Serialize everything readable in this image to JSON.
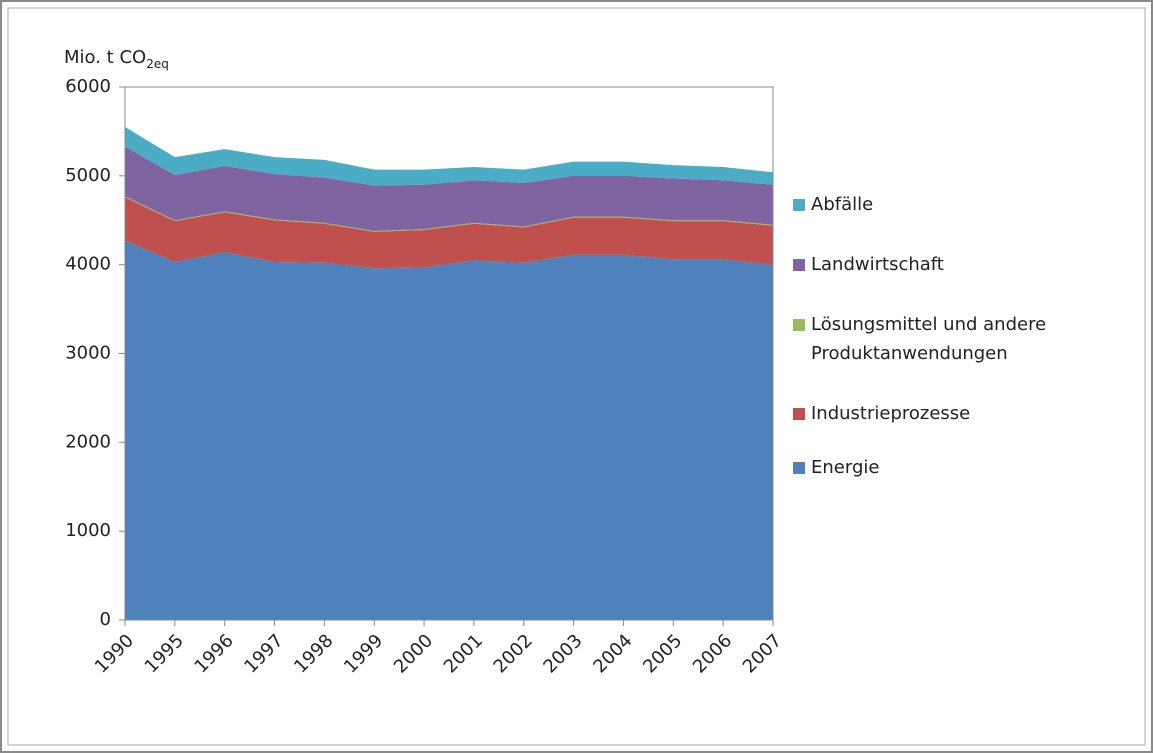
{
  "chart_data": {
    "type": "stacked_area",
    "ylabel": {
      "main": "Mio. t CO",
      "sub": "2eq"
    },
    "categories": [
      "1990",
      "1995",
      "1996",
      "1997",
      "1998",
      "1999",
      "2000",
      "2001",
      "2002",
      "2003",
      "2004",
      "2005",
      "2006",
      "2007"
    ],
    "series": [
      {
        "name": "Energie",
        "color": "#4f81bd",
        "values": [
          4270,
          4030,
          4140,
          4030,
          4020,
          3960,
          3970,
          4050,
          4020,
          4110,
          4110,
          4060,
          4060,
          4000
        ]
      },
      {
        "name": "Industrieprozesse",
        "color": "#c0504d",
        "values": [
          490,
          460,
          450,
          470,
          440,
          410,
          420,
          410,
          400,
          420,
          420,
          430,
          430,
          440
        ]
      },
      {
        "name": "Lösungsmittel und andere Produktanwendungen",
        "color": "#9bbb59",
        "values": [
          10,
          10,
          10,
          10,
          10,
          10,
          10,
          10,
          10,
          10,
          10,
          10,
          10,
          10
        ]
      },
      {
        "name": "Landwirtschaft",
        "color": "#8064a2",
        "values": [
          560,
          510,
          510,
          510,
          510,
          510,
          500,
          480,
          490,
          460,
          460,
          470,
          450,
          450
        ]
      },
      {
        "name": "Abfälle",
        "color": "#4bacc6",
        "values": [
          220,
          200,
          190,
          190,
          200,
          180,
          170,
          150,
          150,
          160,
          160,
          150,
          150,
          140
        ]
      }
    ],
    "ylim": [
      0,
      6000
    ],
    "yticks": [
      0,
      1000,
      2000,
      3000,
      4000,
      5000,
      6000
    ],
    "grid": true,
    "legend": "right"
  }
}
